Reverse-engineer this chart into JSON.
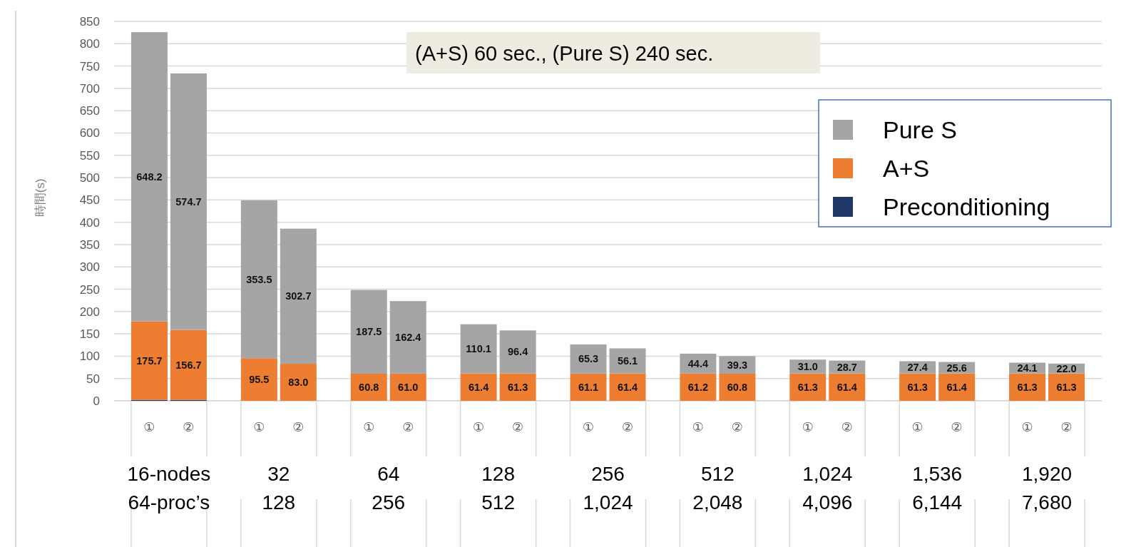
{
  "chart_data": {
    "type": "bar",
    "stacked": true,
    "ylabel": "時間(s)",
    "ylim": [
      0,
      850
    ],
    "yticks": [
      0,
      50,
      100,
      150,
      200,
      250,
      300,
      350,
      400,
      450,
      500,
      550,
      600,
      650,
      700,
      750,
      800,
      850
    ],
    "grid": "y",
    "legend": "top right",
    "categories": [
      "①",
      "②",
      "①",
      "②",
      "①",
      "②",
      "①",
      "②",
      "①",
      "②",
      "①",
      "②",
      "①",
      "②",
      "①",
      "②",
      "①",
      "②"
    ],
    "series": [
      {
        "name": "Preconditioning",
        "color": "#1f3864",
        "values": [
          2,
          2,
          null,
          null,
          null,
          null,
          null,
          null,
          null,
          null,
          null,
          null,
          null,
          null,
          null,
          null,
          null,
          null
        ]
      },
      {
        "name": "A+S",
        "color": "#ed7d31",
        "values": [
          175.7,
          156.7,
          95.5,
          83.0,
          60.8,
          61.0,
          61.4,
          61.3,
          61.1,
          61.4,
          61.2,
          60.8,
          61.3,
          61.4,
          61.3,
          61.4,
          61.3,
          61.3
        ],
        "value_labels": [
          "175.7",
          "156.7",
          "95.5",
          "83.0",
          "60.8",
          "61.0",
          "61.4",
          "61.3",
          "61.1",
          "61.4",
          "61.2",
          "60.8",
          "61.3",
          "61.4",
          "61.3",
          "61.4",
          "61.3",
          "61.3"
        ]
      },
      {
        "name": "Pure S",
        "color": "#a5a5a5",
        "values": [
          648.2,
          574.7,
          353.5,
          302.7,
          187.5,
          162.4,
          110.1,
          96.4,
          65.3,
          56.1,
          44.4,
          39.3,
          31.0,
          28.7,
          27.4,
          25.6,
          24.1,
          22.0
        ],
        "value_labels": [
          "648.2",
          "574.7",
          "353.5",
          "302.7",
          "187.5",
          "162.4",
          "110.1",
          "96.4",
          "65.3",
          "56.1",
          "44.4",
          "39.3",
          "31.0",
          "28.7",
          "27.4",
          "25.6",
          "24.1",
          "22.0"
        ]
      }
    ],
    "annotations": [
      "(A+S) 60 sec., (Pure S) 240 sec.",
      "16-nodes",
      "64-proc’s",
      "32",
      "128",
      "64",
      "256",
      "128",
      "512",
      "256",
      "1,024",
      "512",
      "2,048",
      "1,024",
      "4,096",
      "1,536",
      "6,144",
      "1,920",
      "7,680"
    ]
  }
}
